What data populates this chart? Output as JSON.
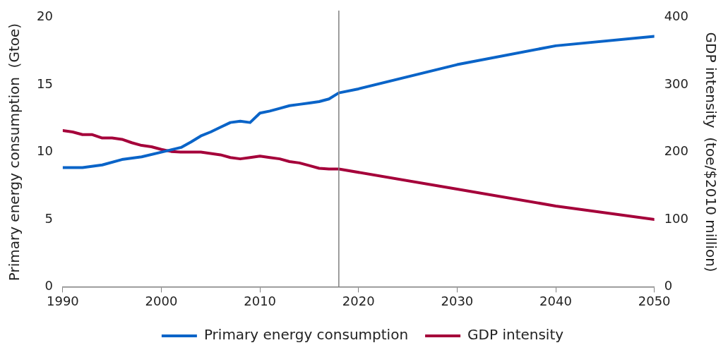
{
  "chart_data": {
    "type": "line",
    "ylabel": "Primary energy consumption  (Gtoe)",
    "y2label": "GDP intensity  (toe/$2010 million)",
    "x": [
      1990,
      1992,
      1994,
      1996,
      1998,
      2000,
      2002,
      2003,
      2004,
      2005,
      2006,
      2007,
      2008,
      2009,
      2010,
      2011,
      2012,
      2013,
      2014,
      2015,
      2016,
      2017,
      2018,
      2020,
      2030,
      2040,
      2050
    ],
    "series": [
      {
        "name": "Primary energy consumption",
        "color": "#0a64c8",
        "values": [
          8.85,
          8.85,
          9.05,
          9.45,
          9.65,
          10.0,
          10.35,
          10.75,
          11.2,
          11.5,
          11.85,
          12.2,
          12.3,
          12.2,
          12.9,
          13.05,
          13.25,
          13.45,
          13.55,
          13.65,
          13.75,
          13.95,
          14.4,
          14.7,
          16.5,
          17.9,
          18.6
        ]
      },
      {
        "name": "GDP intensity",
        "color": "#a5003a",
        "axis": "y2",
        "x": [
          1990,
          1991,
          1992,
          1993,
          1994,
          1995,
          1996,
          1997,
          1998,
          1999,
          2000,
          2001,
          2002,
          2003,
          2004,
          2005,
          2006,
          2007,
          2008,
          2009,
          2010,
          2011,
          2012,
          2013,
          2014,
          2015,
          2016,
          2017,
          2018,
          2030,
          2040,
          2050
        ],
        "values": [
          232,
          230,
          226,
          226,
          221,
          221,
          219,
          214,
          210,
          208,
          204,
          201,
          200,
          200,
          200,
          198,
          196,
          192,
          190,
          192,
          194,
          192,
          190,
          186,
          184,
          180,
          176,
          175,
          175,
          145,
          120,
          100
        ]
      }
    ],
    "xlim": [
      1990,
      2050
    ],
    "xticks": [
      1990,
      2000,
      2010,
      2020,
      2030,
      2040,
      2050
    ],
    "ylim": [
      0,
      20
    ],
    "yticks": [
      0,
      5,
      10,
      15,
      20
    ],
    "y2lim": [
      0,
      400
    ],
    "y2ticks": [
      0,
      100,
      200,
      300,
      400
    ],
    "ref_lines": [
      {
        "axis": "x",
        "value": 2018,
        "color": "#808080"
      }
    ],
    "grid": false,
    "legend": "bottom",
    "marker": "none",
    "line_style": "solid"
  }
}
